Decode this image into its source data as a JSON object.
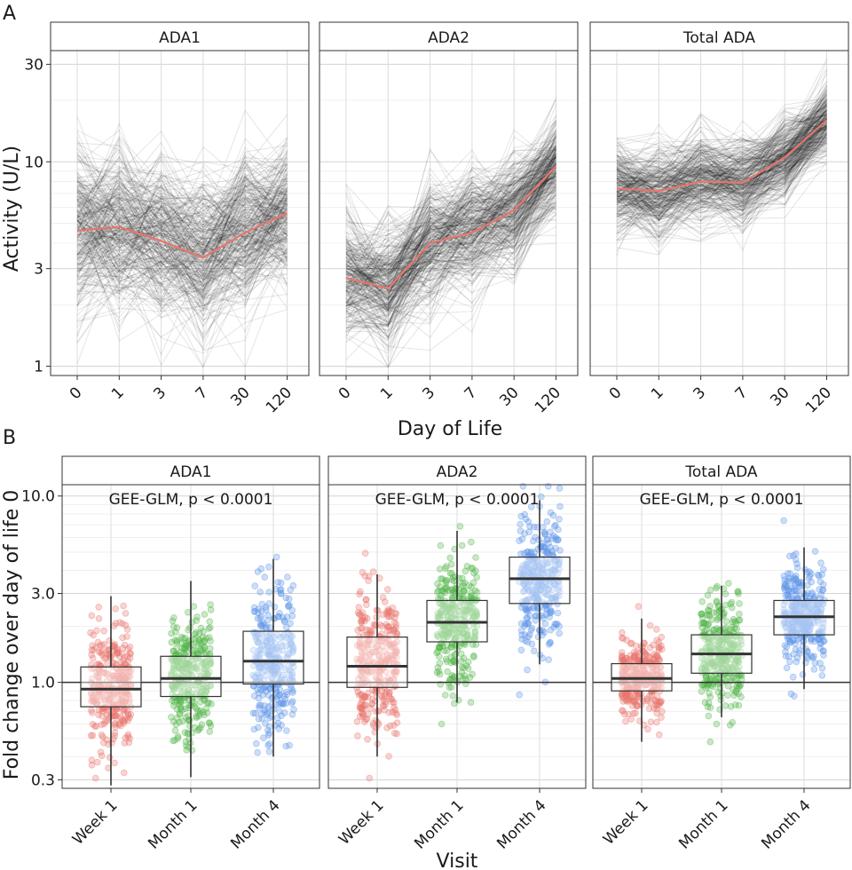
{
  "chart_data": [
    {
      "panel_label": "A",
      "type": "line",
      "xlabel": "Day of Life",
      "ylabel": "Activity (U/L)",
      "y_scale": "log",
      "ylim": [
        0.9,
        35
      ],
      "y_ticks": [
        1,
        3,
        10,
        30
      ],
      "y_tick_labels": [
        "1",
        "3",
        "10",
        "30"
      ],
      "categories": [
        "0",
        "1",
        "3",
        "7",
        "30",
        "120"
      ],
      "colors": {
        "individual": "#000000",
        "mean": "#e8756c"
      },
      "facets": [
        {
          "title": "ADA1",
          "mean": [
            4.6,
            4.8,
            4.1,
            3.4,
            4.5,
            5.6
          ],
          "spread": [
            1.15,
            1.1,
            1.15,
            1.1,
            1.0,
            0.95
          ]
        },
        {
          "title": "ADA2",
          "mean": [
            2.7,
            2.4,
            4.0,
            4.5,
            5.8,
            9.5
          ],
          "spread": [
            0.9,
            0.85,
            0.85,
            0.8,
            0.75,
            0.65
          ]
        },
        {
          "title": "Total ADA",
          "mean": [
            7.4,
            7.2,
            8.0,
            7.9,
            10.5,
            16.0
          ],
          "spread": [
            0.65,
            0.65,
            0.6,
            0.6,
            0.55,
            0.5
          ]
        }
      ]
    },
    {
      "panel_label": "B",
      "type": "box",
      "xlabel": "Visit",
      "ylabel": "Fold change over day of life 0",
      "y_scale": "log",
      "ylim": [
        0.27,
        11.5
      ],
      "y_ticks": [
        0.3,
        1.0,
        3.0,
        10.0
      ],
      "y_tick_labels": [
        "0.3",
        "1.0",
        "3.0",
        "10.0"
      ],
      "reference_line": 1.0,
      "categories": [
        "Week 1",
        "Month 1",
        "Month 4"
      ],
      "colors": [
        "#e8756c",
        "#4fb346",
        "#5b93e8"
      ],
      "facets": [
        {
          "title": "ADA1",
          "annotation": "GEE-GLM, p < 0.0001",
          "boxes": [
            {
              "median": 0.92,
              "q1": 0.74,
              "q3": 1.21,
              "whisker_low": 0.28,
              "whisker_high": 2.9
            },
            {
              "median": 1.05,
              "q1": 0.84,
              "q3": 1.38,
              "whisker_low": 0.31,
              "whisker_high": 3.5
            },
            {
              "median": 1.3,
              "q1": 0.98,
              "q3": 1.88,
              "whisker_low": 0.4,
              "whisker_high": 4.6
            }
          ]
        },
        {
          "title": "ADA2",
          "annotation": "GEE-GLM, p < 0.0001",
          "boxes": [
            {
              "median": 1.22,
              "q1": 0.94,
              "q3": 1.75,
              "whisker_low": 0.4,
              "whisker_high": 3.8
            },
            {
              "median": 2.1,
              "q1": 1.65,
              "q3": 2.75,
              "whisker_low": 0.78,
              "whisker_high": 6.5
            },
            {
              "median": 3.6,
              "q1": 2.65,
              "q3": 4.7,
              "whisker_low": 1.25,
              "whisker_high": 9.5
            }
          ]
        },
        {
          "title": "Total ADA",
          "annotation": "GEE-GLM, p < 0.0001",
          "boxes": [
            {
              "median": 1.05,
              "q1": 0.9,
              "q3": 1.26,
              "whisker_low": 0.48,
              "whisker_high": 2.2
            },
            {
              "median": 1.42,
              "q1": 1.12,
              "q3": 1.8,
              "whisker_low": 0.65,
              "whisker_high": 3.3
            },
            {
              "median": 2.25,
              "q1": 1.8,
              "q3": 2.75,
              "whisker_low": 0.92,
              "whisker_high": 5.3
            }
          ]
        }
      ]
    }
  ]
}
